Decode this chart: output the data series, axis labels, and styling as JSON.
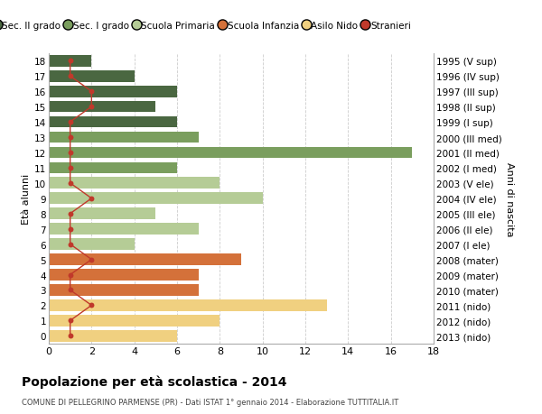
{
  "ages": [
    18,
    17,
    16,
    15,
    14,
    13,
    12,
    11,
    10,
    9,
    8,
    7,
    6,
    5,
    4,
    3,
    2,
    1,
    0
  ],
  "right_labels": [
    "1995 (V sup)",
    "1996 (IV sup)",
    "1997 (III sup)",
    "1998 (II sup)",
    "1999 (I sup)",
    "2000 (III med)",
    "2001 (II med)",
    "2002 (I med)",
    "2003 (V ele)",
    "2004 (IV ele)",
    "2005 (III ele)",
    "2006 (II ele)",
    "2007 (I ele)",
    "2008 (mater)",
    "2009 (mater)",
    "2010 (mater)",
    "2011 (nido)",
    "2012 (nido)",
    "2013 (nido)"
  ],
  "bar_values": [
    2,
    4,
    6,
    5,
    6,
    7,
    17,
    6,
    8,
    10,
    5,
    7,
    4,
    9,
    7,
    7,
    13,
    8,
    6
  ],
  "bar_colors": [
    "#4a6741",
    "#4a6741",
    "#4a6741",
    "#4a6741",
    "#4a6741",
    "#7a9e5e",
    "#7a9e5e",
    "#7a9e5e",
    "#b5cc96",
    "#b5cc96",
    "#b5cc96",
    "#b5cc96",
    "#b5cc96",
    "#d4713a",
    "#d4713a",
    "#d4713a",
    "#f0d080",
    "#f0d080",
    "#f0d080"
  ],
  "stranieri_values": [
    1,
    1,
    2,
    2,
    1,
    1,
    1,
    1,
    1,
    2,
    1,
    1,
    1,
    2,
    1,
    1,
    2,
    1,
    1
  ],
  "legend_labels": [
    "Sec. II grado",
    "Sec. I grado",
    "Scuola Primaria",
    "Scuola Infanzia",
    "Asilo Nido",
    "Stranieri"
  ],
  "legend_colors": [
    "#4a6741",
    "#7a9e5e",
    "#b5cc96",
    "#d4713a",
    "#f0d080",
    "#c0392b"
  ],
  "title": "Popolazione per età scolastica - 2014",
  "subtitle": "COMUNE DI PELLEGRINO PARMENSE (PR) - Dati ISTAT 1° gennaio 2014 - Elaborazione TUTTITALIA.IT",
  "ylabel": "Età alunni",
  "ylabel_right": "Anni di nascita",
  "xlim": [
    0,
    18
  ],
  "background_color": "#ffffff",
  "grid_color": "#cccccc"
}
